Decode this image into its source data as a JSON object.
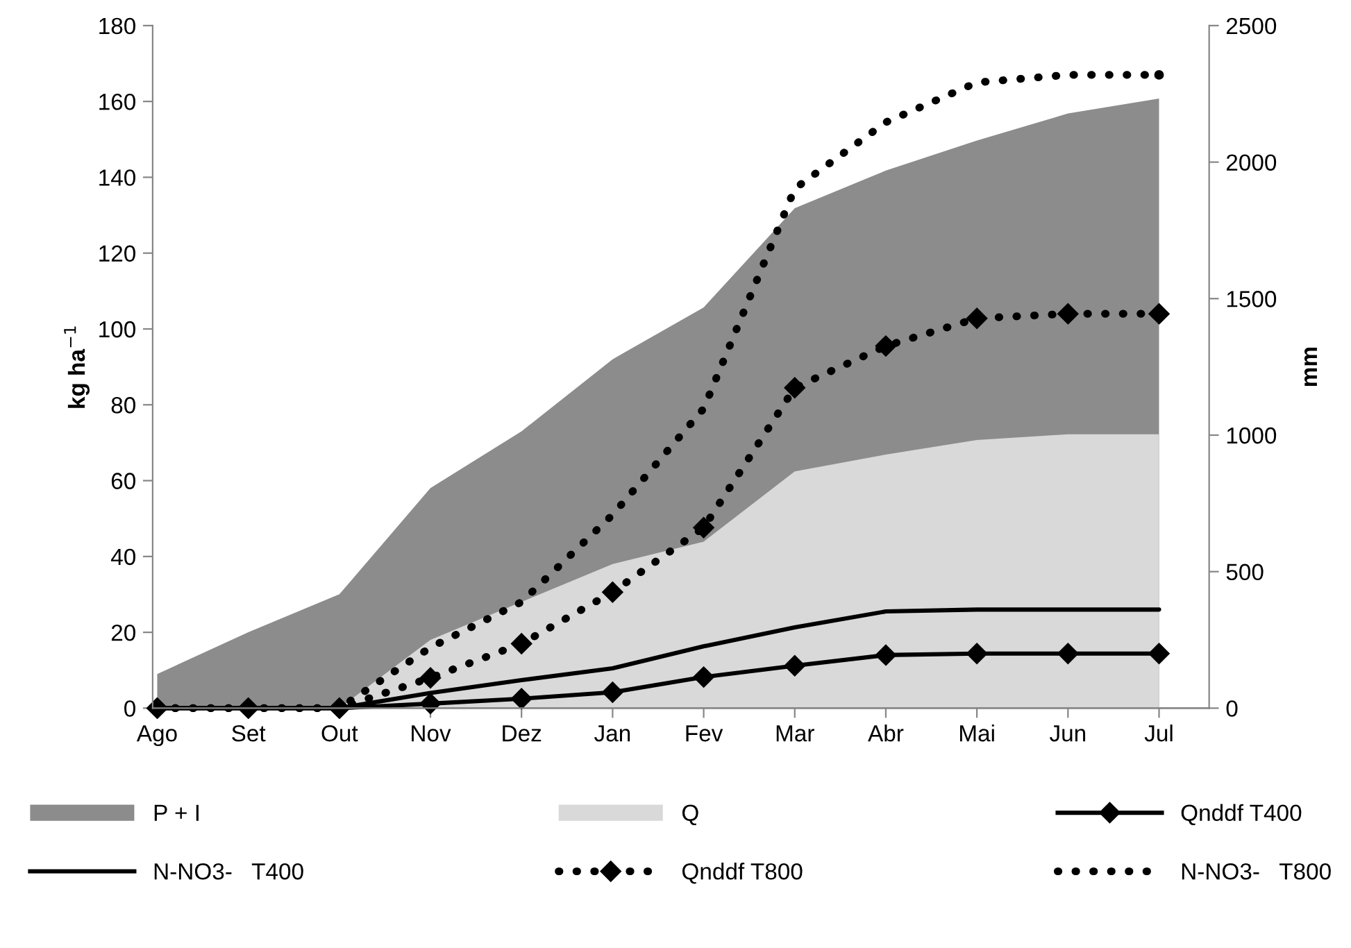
{
  "chart_data": {
    "type": "line",
    "ylabel": "kg ha$^{−1}$",
    "y2label": "mm",
    "categories": [
      "Ago",
      "Set",
      "Out",
      "Nov",
      "Dez",
      "Jan",
      "Fev",
      "Mar",
      "Abr",
      "Mai",
      "Jun",
      "Jul"
    ],
    "ylim": [
      0,
      180
    ],
    "yticks": [
      0,
      20,
      40,
      60,
      80,
      100,
      120,
      140,
      160,
      180
    ],
    "y2lim": [
      0,
      2500
    ],
    "y2ticks": [
      0,
      500,
      1000,
      1500,
      2000,
      2500
    ],
    "grid": false,
    "legend": "bottom",
    "series": [
      {
        "name": "P + I",
        "type": "area",
        "axis": "y2",
        "color": "#8c8c8c",
        "values": [
          125,
          278,
          417,
          806,
          1014,
          1278,
          1468,
          1831,
          1969,
          2079,
          2178,
          2233
        ]
      },
      {
        "name": "Q",
        "type": "area",
        "axis": "y2",
        "color": "#d9d9d9",
        "values": [
          0,
          0,
          0,
          250,
          389,
          528,
          610,
          867,
          929,
          982,
          1003,
          1003
        ]
      },
      {
        "name": "Qnddf T400",
        "type": "line",
        "color": "#000000",
        "marker": "diamond",
        "line_style": "solid",
        "values": [
          0,
          0,
          0,
          1.2,
          2.5,
          4.2,
          8.2,
          11.2,
          14,
          14.4,
          14.4,
          14.4
        ]
      },
      {
        "name": "N-NO3-   T400",
        "type": "line",
        "color": "#000000",
        "marker": "none",
        "line_style": "solid",
        "values": [
          0,
          0,
          0,
          4,
          7.4,
          10.5,
          16.3,
          21.3,
          25.5,
          26,
          26,
          26
        ]
      },
      {
        "name": "Qnddf T800",
        "type": "line",
        "color": "#000000",
        "marker": "diamond",
        "line_style": "dotted",
        "values": [
          0,
          0,
          0,
          8,
          17,
          30.6,
          47.6,
          84.5,
          95.5,
          102.8,
          104,
          104
        ]
      },
      {
        "name": "N-NO3-   T800",
        "type": "line",
        "color": "#000000",
        "marker": "none",
        "line_style": "dotted",
        "values": [
          0,
          0,
          0,
          16,
          28,
          51,
          79,
          137,
          154.5,
          165,
          167,
          167
        ]
      }
    ]
  }
}
